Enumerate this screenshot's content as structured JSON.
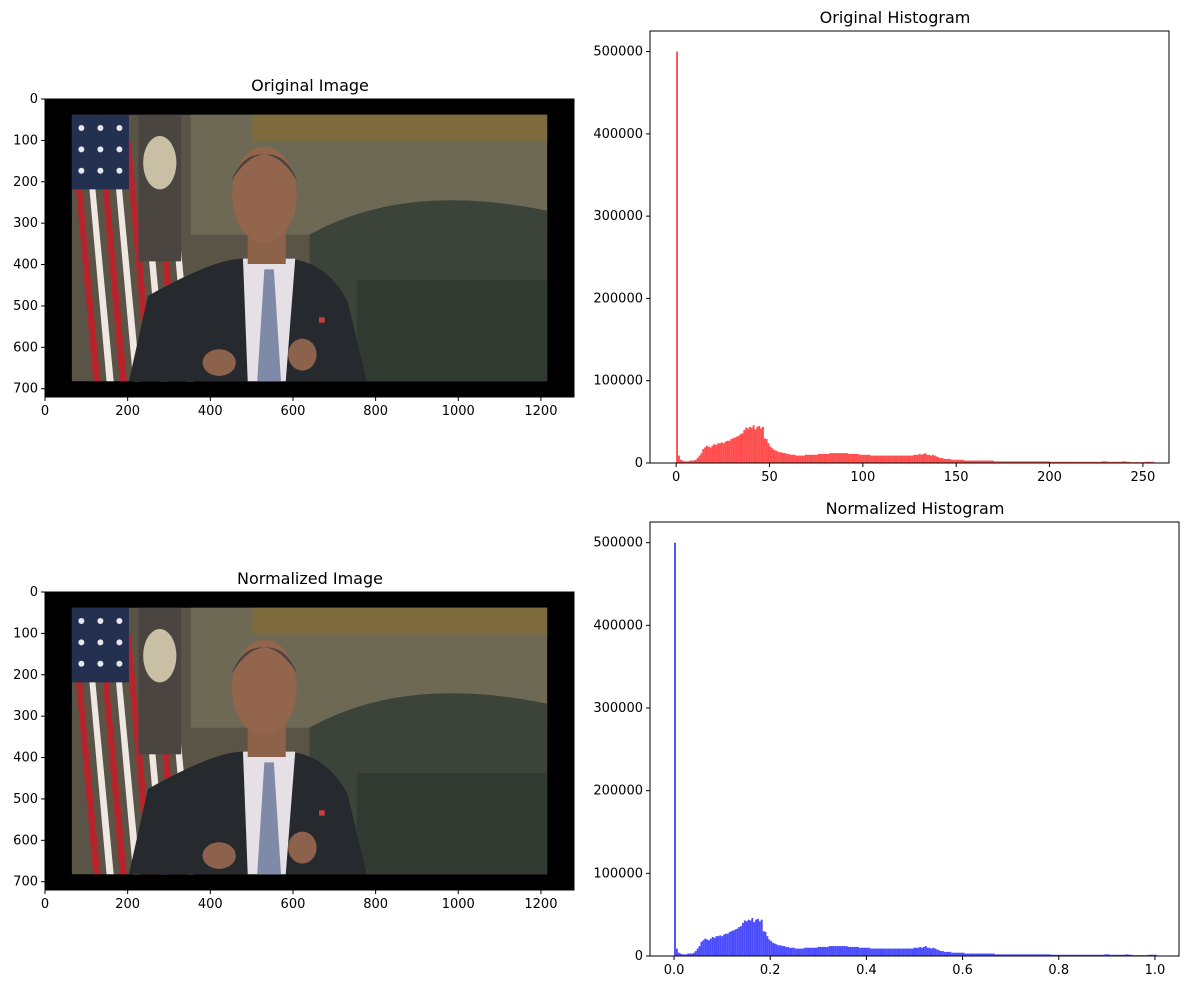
{
  "chart_data": [
    {
      "type": "image",
      "id": "orig-img",
      "title": "Original Image",
      "xlim": [
        0,
        1280
      ],
      "ylim": [
        720,
        0
      ],
      "xticks": [
        0,
        200,
        400,
        600,
        800,
        1000,
        1200
      ],
      "yticks": [
        0,
        100,
        200,
        300,
        400,
        500,
        600,
        700
      ],
      "frame": {
        "x_start": 65,
        "x_end": 1215,
        "y_start": 38,
        "y_end": 682
      },
      "colors": {
        "border": "#000000"
      }
    },
    {
      "type": "bar",
      "id": "orig-hist",
      "title": "Original Histogram",
      "xlim": [
        -14,
        264
      ],
      "ylim": [
        0,
        525000
      ],
      "xticks": [
        0,
        50,
        100,
        150,
        200,
        250
      ],
      "yticks": [
        0,
        100000,
        200000,
        300000,
        400000,
        500000
      ],
      "bin_width": 1,
      "color": "#ff0000",
      "alpha": 0.7,
      "bins": [
        {
          "x": 0,
          "y": 500000
        },
        {
          "x": 1,
          "y": 9000
        },
        {
          "x": 2,
          "y": 4000
        },
        {
          "x": 3,
          "y": 3000
        },
        {
          "x": 4,
          "y": 2000
        },
        {
          "x": 5,
          "y": 2000
        },
        {
          "x": 6,
          "y": 2000
        },
        {
          "x": 7,
          "y": 3000
        },
        {
          "x": 8,
          "y": 3000
        },
        {
          "x": 9,
          "y": 3000
        },
        {
          "x": 10,
          "y": 4000
        },
        {
          "x": 11,
          "y": 6000
        },
        {
          "x": 12,
          "y": 9000
        },
        {
          "x": 13,
          "y": 12000
        },
        {
          "x": 14,
          "y": 17000
        },
        {
          "x": 15,
          "y": 19000
        },
        {
          "x": 16,
          "y": 21000
        },
        {
          "x": 17,
          "y": 20000
        },
        {
          "x": 18,
          "y": 19000
        },
        {
          "x": 19,
          "y": 21000
        },
        {
          "x": 20,
          "y": 23000
        },
        {
          "x": 21,
          "y": 22000
        },
        {
          "x": 22,
          "y": 24000
        },
        {
          "x": 23,
          "y": 24000
        },
        {
          "x": 24,
          "y": 25000
        },
        {
          "x": 25,
          "y": 24000
        },
        {
          "x": 26,
          "y": 26000
        },
        {
          "x": 27,
          "y": 27000
        },
        {
          "x": 28,
          "y": 27000
        },
        {
          "x": 29,
          "y": 29000
        },
        {
          "x": 30,
          "y": 30000
        },
        {
          "x": 31,
          "y": 31000
        },
        {
          "x": 32,
          "y": 32000
        },
        {
          "x": 33,
          "y": 33000
        },
        {
          "x": 34,
          "y": 35000
        },
        {
          "x": 35,
          "y": 36000
        },
        {
          "x": 36,
          "y": 40000
        },
        {
          "x": 37,
          "y": 43000
        },
        {
          "x": 38,
          "y": 42000
        },
        {
          "x": 39,
          "y": 44000
        },
        {
          "x": 40,
          "y": 43000
        },
        {
          "x": 41,
          "y": 46000
        },
        {
          "x": 42,
          "y": 41000
        },
        {
          "x": 43,
          "y": 44000
        },
        {
          "x": 44,
          "y": 45000
        },
        {
          "x": 45,
          "y": 42000
        },
        {
          "x": 46,
          "y": 44000
        },
        {
          "x": 47,
          "y": 30000
        },
        {
          "x": 48,
          "y": 29000
        },
        {
          "x": 49,
          "y": 24000
        },
        {
          "x": 50,
          "y": 20000
        },
        {
          "x": 51,
          "y": 18000
        },
        {
          "x": 52,
          "y": 16000
        },
        {
          "x": 53,
          "y": 15000
        },
        {
          "x": 54,
          "y": 14000
        },
        {
          "x": 55,
          "y": 13000
        },
        {
          "x": 56,
          "y": 13000
        },
        {
          "x": 57,
          "y": 12000
        },
        {
          "x": 58,
          "y": 12000
        },
        {
          "x": 59,
          "y": 11000
        },
        {
          "x": 60,
          "y": 11000
        },
        {
          "x": 61,
          "y": 10000
        },
        {
          "x": 62,
          "y": 10000
        },
        {
          "x": 63,
          "y": 10000
        },
        {
          "x": 64,
          "y": 9000
        },
        {
          "x": 65,
          "y": 9000
        },
        {
          "x": 66,
          "y": 9000
        },
        {
          "x": 67,
          "y": 9000
        },
        {
          "x": 68,
          "y": 9000
        },
        {
          "x": 69,
          "y": 10000
        },
        {
          "x": 70,
          "y": 10000
        },
        {
          "x": 71,
          "y": 10000
        },
        {
          "x": 72,
          "y": 10000
        },
        {
          "x": 73,
          "y": 10000
        },
        {
          "x": 74,
          "y": 10000
        },
        {
          "x": 75,
          "y": 10000
        },
        {
          "x": 76,
          "y": 11000
        },
        {
          "x": 77,
          "y": 11000
        },
        {
          "x": 78,
          "y": 11000
        },
        {
          "x": 79,
          "y": 11000
        },
        {
          "x": 80,
          "y": 11000
        },
        {
          "x": 81,
          "y": 11000
        },
        {
          "x": 82,
          "y": 12000
        },
        {
          "x": 83,
          "y": 12000
        },
        {
          "x": 84,
          "y": 12000
        },
        {
          "x": 85,
          "y": 12000
        },
        {
          "x": 86,
          "y": 12000
        },
        {
          "x": 87,
          "y": 12000
        },
        {
          "x": 88,
          "y": 12000
        },
        {
          "x": 89,
          "y": 12000
        },
        {
          "x": 90,
          "y": 12000
        },
        {
          "x": 91,
          "y": 12000
        },
        {
          "x": 92,
          "y": 11000
        },
        {
          "x": 93,
          "y": 11000
        },
        {
          "x": 94,
          "y": 11000
        },
        {
          "x": 95,
          "y": 11000
        },
        {
          "x": 96,
          "y": 11000
        },
        {
          "x": 97,
          "y": 11000
        },
        {
          "x": 98,
          "y": 10000
        },
        {
          "x": 99,
          "y": 10000
        },
        {
          "x": 100,
          "y": 10000
        },
        {
          "x": 101,
          "y": 10000
        },
        {
          "x": 102,
          "y": 10000
        },
        {
          "x": 103,
          "y": 10000
        },
        {
          "x": 104,
          "y": 9000
        },
        {
          "x": 105,
          "y": 9000
        },
        {
          "x": 106,
          "y": 9000
        },
        {
          "x": 107,
          "y": 9000
        },
        {
          "x": 108,
          "y": 9000
        },
        {
          "x": 109,
          "y": 9000
        },
        {
          "x": 110,
          "y": 9000
        },
        {
          "x": 111,
          "y": 9000
        },
        {
          "x": 112,
          "y": 9000
        },
        {
          "x": 113,
          "y": 9000
        },
        {
          "x": 114,
          "y": 9000
        },
        {
          "x": 115,
          "y": 9000
        },
        {
          "x": 116,
          "y": 9000
        },
        {
          "x": 117,
          "y": 9000
        },
        {
          "x": 118,
          "y": 9000
        },
        {
          "x": 119,
          "y": 9000
        },
        {
          "x": 120,
          "y": 9000
        },
        {
          "x": 121,
          "y": 9000
        },
        {
          "x": 122,
          "y": 9000
        },
        {
          "x": 123,
          "y": 9000
        },
        {
          "x": 124,
          "y": 9000
        },
        {
          "x": 125,
          "y": 9000
        },
        {
          "x": 126,
          "y": 9000
        },
        {
          "x": 127,
          "y": 10000
        },
        {
          "x": 128,
          "y": 10000
        },
        {
          "x": 129,
          "y": 10000
        },
        {
          "x": 130,
          "y": 11000
        },
        {
          "x": 131,
          "y": 10000
        },
        {
          "x": 132,
          "y": 11000
        },
        {
          "x": 133,
          "y": 12000
        },
        {
          "x": 134,
          "y": 10000
        },
        {
          "x": 135,
          "y": 10000
        },
        {
          "x": 136,
          "y": 9000
        },
        {
          "x": 137,
          "y": 10000
        },
        {
          "x": 138,
          "y": 9000
        },
        {
          "x": 139,
          "y": 8000
        },
        {
          "x": 140,
          "y": 7000
        },
        {
          "x": 141,
          "y": 6000
        },
        {
          "x": 142,
          "y": 6000
        },
        {
          "x": 143,
          "y": 5000
        },
        {
          "x": 144,
          "y": 5000
        },
        {
          "x": 145,
          "y": 5000
        },
        {
          "x": 146,
          "y": 5000
        },
        {
          "x": 147,
          "y": 4000
        },
        {
          "x": 148,
          "y": 4000
        },
        {
          "x": 149,
          "y": 4000
        },
        {
          "x": 150,
          "y": 4000
        },
        {
          "x": 151,
          "y": 4000
        },
        {
          "x": 152,
          "y": 4000
        },
        {
          "x": 153,
          "y": 4000
        },
        {
          "x": 154,
          "y": 3000
        },
        {
          "x": 155,
          "y": 3000
        },
        {
          "x": 156,
          "y": 3000
        },
        {
          "x": 157,
          "y": 3000
        },
        {
          "x": 158,
          "y": 3000
        },
        {
          "x": 159,
          "y": 3000
        },
        {
          "x": 160,
          "y": 3000
        },
        {
          "x": 161,
          "y": 3000
        },
        {
          "x": 162,
          "y": 3000
        },
        {
          "x": 163,
          "y": 3000
        },
        {
          "x": 164,
          "y": 3000
        },
        {
          "x": 165,
          "y": 3000
        },
        {
          "x": 166,
          "y": 3000
        },
        {
          "x": 167,
          "y": 3000
        },
        {
          "x": 168,
          "y": 3000
        },
        {
          "x": 169,
          "y": 3000
        },
        {
          "x": 170,
          "y": 2000
        },
        {
          "x": 171,
          "y": 2000
        },
        {
          "x": 172,
          "y": 2000
        },
        {
          "x": 173,
          "y": 2000
        },
        {
          "x": 174,
          "y": 2000
        },
        {
          "x": 175,
          "y": 2000
        },
        {
          "x": 176,
          "y": 2000
        },
        {
          "x": 177,
          "y": 2000
        },
        {
          "x": 178,
          "y": 2000
        },
        {
          "x": 179,
          "y": 2000
        },
        {
          "x": 180,
          "y": 2000
        },
        {
          "x": 181,
          "y": 2000
        },
        {
          "x": 182,
          "y": 2000
        },
        {
          "x": 183,
          "y": 2000
        },
        {
          "x": 184,
          "y": 2000
        },
        {
          "x": 185,
          "y": 2000
        },
        {
          "x": 186,
          "y": 2000
        },
        {
          "x": 187,
          "y": 2000
        },
        {
          "x": 188,
          "y": 2000
        },
        {
          "x": 189,
          "y": 2000
        },
        {
          "x": 190,
          "y": 2000
        },
        {
          "x": 191,
          "y": 2000
        },
        {
          "x": 192,
          "y": 2000
        },
        {
          "x": 193,
          "y": 2000
        },
        {
          "x": 194,
          "y": 2000
        },
        {
          "x": 195,
          "y": 2000
        },
        {
          "x": 196,
          "y": 2000
        },
        {
          "x": 197,
          "y": 2000
        },
        {
          "x": 198,
          "y": 2000
        },
        {
          "x": 199,
          "y": 2000
        },
        {
          "x": 200,
          "y": 1500
        },
        {
          "x": 201,
          "y": 1500
        },
        {
          "x": 202,
          "y": 1500
        },
        {
          "x": 203,
          "y": 1500
        },
        {
          "x": 204,
          "y": 1500
        },
        {
          "x": 205,
          "y": 1500
        },
        {
          "x": 206,
          "y": 1500
        },
        {
          "x": 207,
          "y": 1500
        },
        {
          "x": 208,
          "y": 1500
        },
        {
          "x": 209,
          "y": 1500
        },
        {
          "x": 210,
          "y": 1500
        },
        {
          "x": 211,
          "y": 1500
        },
        {
          "x": 212,
          "y": 1500
        },
        {
          "x": 213,
          "y": 1500
        },
        {
          "x": 214,
          "y": 1500
        },
        {
          "x": 215,
          "y": 1500
        },
        {
          "x": 216,
          "y": 1500
        },
        {
          "x": 217,
          "y": 1500
        },
        {
          "x": 218,
          "y": 1500
        },
        {
          "x": 219,
          "y": 1500
        },
        {
          "x": 220,
          "y": 1500
        },
        {
          "x": 221,
          "y": 1500
        },
        {
          "x": 222,
          "y": 1500
        },
        {
          "x": 223,
          "y": 1500
        },
        {
          "x": 224,
          "y": 1500
        },
        {
          "x": 225,
          "y": 1500
        },
        {
          "x": 226,
          "y": 1500
        },
        {
          "x": 227,
          "y": 1500
        },
        {
          "x": 228,
          "y": 2000
        },
        {
          "x": 229,
          "y": 2000
        },
        {
          "x": 230,
          "y": 2000
        },
        {
          "x": 231,
          "y": 1500
        },
        {
          "x": 232,
          "y": 1500
        },
        {
          "x": 233,
          "y": 1500
        },
        {
          "x": 234,
          "y": 1500
        },
        {
          "x": 235,
          "y": 1500
        },
        {
          "x": 236,
          "y": 1500
        },
        {
          "x": 237,
          "y": 1500
        },
        {
          "x": 238,
          "y": 1500
        },
        {
          "x": 239,
          "y": 2000
        },
        {
          "x": 240,
          "y": 2000
        },
        {
          "x": 241,
          "y": 1500
        },
        {
          "x": 242,
          "y": 1500
        },
        {
          "x": 243,
          "y": 1000
        },
        {
          "x": 244,
          "y": 1000
        },
        {
          "x": 245,
          "y": 1000
        },
        {
          "x": 246,
          "y": 1000
        },
        {
          "x": 247,
          "y": 1000
        },
        {
          "x": 248,
          "y": 1000
        },
        {
          "x": 249,
          "y": 1000
        },
        {
          "x": 250,
          "y": 1000
        },
        {
          "x": 251,
          "y": 1500
        },
        {
          "x": 252,
          "y": 1500
        },
        {
          "x": 253,
          "y": 1500
        },
        {
          "x": 254,
          "y": 1500
        },
        {
          "x": 255,
          "y": 1500
        }
      ]
    },
    {
      "type": "image",
      "id": "norm-img",
      "title": "Normalized Image",
      "xlim": [
        0,
        1280
      ],
      "ylim": [
        720,
        0
      ],
      "xticks": [
        0,
        200,
        400,
        600,
        800,
        1000,
        1200
      ],
      "yticks": [
        0,
        100,
        200,
        300,
        400,
        500,
        600,
        700
      ],
      "frame": {
        "x_start": 65,
        "x_end": 1215,
        "y_start": 38,
        "y_end": 682
      },
      "colors": {
        "border": "#000000"
      }
    },
    {
      "type": "bar",
      "id": "norm-hist",
      "title": "Normalized Histogram",
      "xlim": [
        -0.05,
        1.05
      ],
      "ylim": [
        0,
        525000
      ],
      "xticks": [
        0.0,
        0.2,
        0.4,
        0.6,
        0.8,
        1.0
      ],
      "xtick_labels": [
        "0.0",
        "0.2",
        "0.4",
        "0.6",
        "0.8",
        "1.0"
      ],
      "yticks": [
        0,
        100000,
        200000,
        300000,
        400000,
        500000
      ],
      "bin_scale": 0.00392157,
      "color": "#0000ff",
      "alpha": 0.7,
      "source_bins": "orig-hist"
    }
  ]
}
